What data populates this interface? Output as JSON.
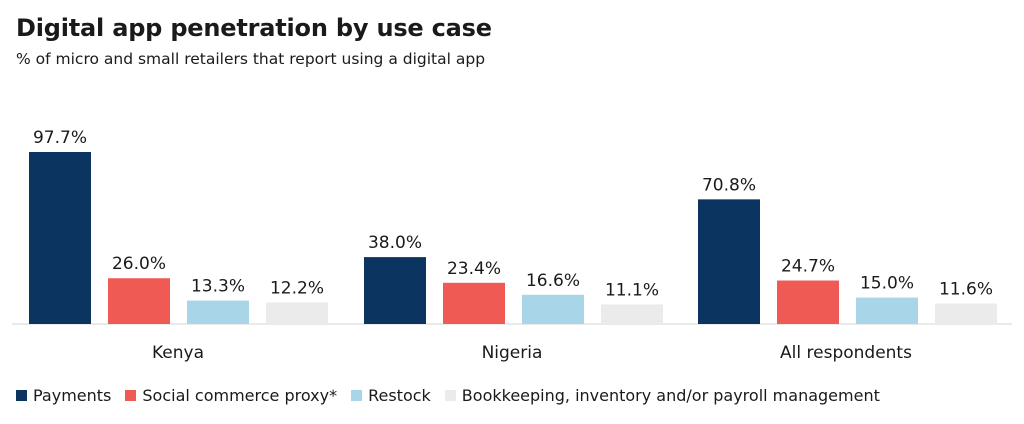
{
  "header": {
    "title": "Digital app penetration by use case",
    "subtitle": "% of micro and small retailers that report using a digital app"
  },
  "chart_data": {
    "type": "bar",
    "categories": [
      "Kenya",
      "Nigeria",
      "All respondents"
    ],
    "series": [
      {
        "name": "Payments",
        "values": [
          97.7,
          38.0,
          70.8
        ],
        "labels": [
          "97.7%",
          "38.0%",
          "70.8%"
        ],
        "color": "#0b3560"
      },
      {
        "name": "Social commerce proxy*",
        "values": [
          26.0,
          23.4,
          24.7
        ],
        "labels": [
          "26.0%",
          "23.4%",
          "24.7%"
        ],
        "color": "#f05a55"
      },
      {
        "name": "Restock",
        "values": [
          13.3,
          16.6,
          15.0
        ],
        "labels": [
          "13.3%",
          "16.6%",
          "15.0%"
        ],
        "color": "#a8d5e8"
      },
      {
        "name": "Bookkeeping, inventory and/or payroll management",
        "values": [
          12.2,
          11.1,
          11.6
        ],
        "labels": [
          "12.2%",
          "11.1%",
          "11.6%"
        ],
        "color": "#ebebeb"
      }
    ],
    "ylim": [
      0,
      100
    ],
    "grid": false,
    "legend_position": "bottom"
  }
}
